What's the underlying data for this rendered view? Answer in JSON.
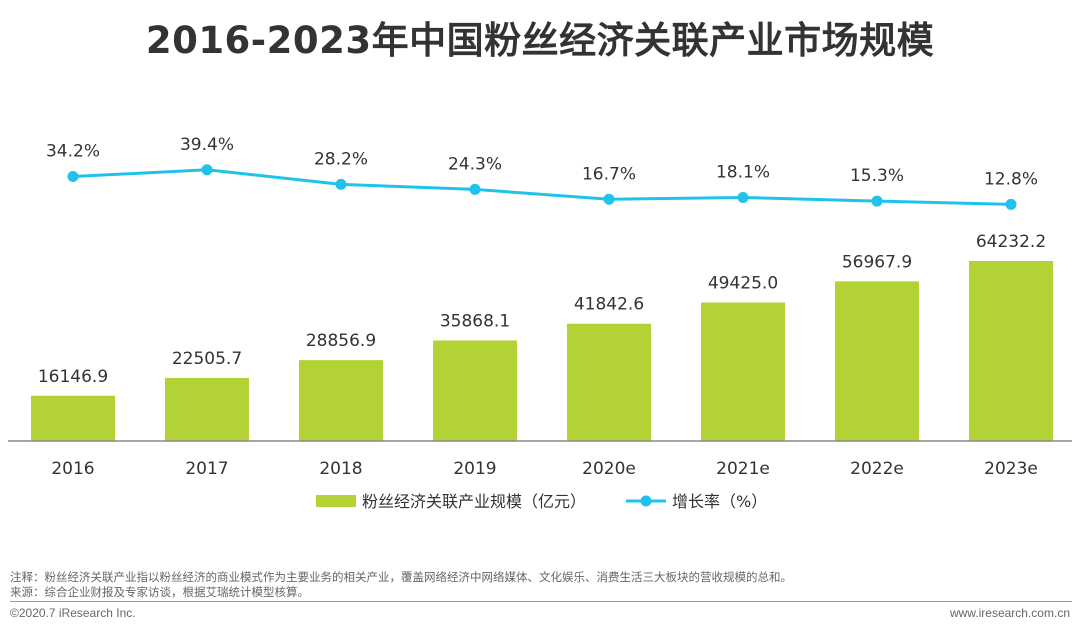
{
  "header": {
    "title": "2016-2023年中国粉丝经济关联产业市场规模"
  },
  "chart_data": {
    "type": "bar+line",
    "categories": [
      "2016",
      "2017",
      "2018",
      "2019",
      "2020e",
      "2021e",
      "2022e",
      "2023e"
    ],
    "series": [
      {
        "name": "粉丝经济关联产业规模（亿元）",
        "type": "bar",
        "values": [
          16146.9,
          22505.7,
          28856.9,
          35868.1,
          41842.6,
          49425.0,
          56967.9,
          64232.2
        ],
        "labels": [
          "16146.9",
          "22505.7",
          "28856.9",
          "35868.1",
          "41842.6",
          "49425.0",
          "56967.9",
          "64232.2"
        ],
        "color": "#b2d235"
      },
      {
        "name": "增长率（%）",
        "type": "line",
        "values": [
          34.2,
          39.4,
          28.2,
          24.3,
          16.7,
          18.1,
          15.3,
          12.8
        ],
        "labels": [
          "34.2%",
          "39.4%",
          "28.2%",
          "24.3%",
          "16.7%",
          "18.1%",
          "15.3%",
          "12.8%"
        ],
        "color": "#1fc3ea"
      }
    ],
    "legend_position": "bottom-center",
    "grid": false
  },
  "footer": {
    "note": "注释：粉丝经济关联产业指以粉丝经济的商业模式作为主要业务的相关产业，覆盖网络经济中网络媒体、文化娱乐、消费生活三大板块的营收规模的总和。",
    "source": "来源：综合企业财报及专家访谈，根据艾瑞统计模型核算。",
    "copyright": "©2020.7 iResearch Inc.",
    "website": "www.iresearch.com.cn"
  }
}
